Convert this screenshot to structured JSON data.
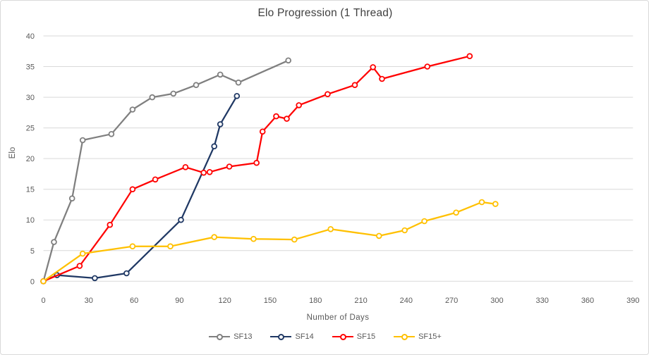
{
  "window": {
    "background": "#ffffff",
    "border_color": "#d9d9d9",
    "gridline_color": "#d9d9d9",
    "tick_text_color": "#595959",
    "title_text_color": "#404040"
  },
  "chart_data": {
    "type": "line",
    "title": "Elo Progression (1 Thread)",
    "xlabel": "Number of Days",
    "ylabel": "Elo",
    "xlim": [
      0,
      390
    ],
    "ylim": [
      0,
      40
    ],
    "xticks": [
      0,
      30,
      60,
      90,
      120,
      150,
      180,
      210,
      240,
      270,
      300,
      330,
      360,
      390
    ],
    "yticks": [
      0,
      5,
      10,
      15,
      20,
      25,
      30,
      35,
      40
    ],
    "grid": "horizontal",
    "legend_position": "bottom",
    "marker": "open-circle",
    "series": [
      {
        "name": "SF13",
        "color": "#7f7f7f",
        "points": [
          [
            0,
            0
          ],
          [
            7,
            6.4
          ],
          [
            19,
            13.5
          ],
          [
            26,
            23
          ],
          [
            45,
            24
          ],
          [
            59,
            28
          ],
          [
            72,
            30
          ],
          [
            86,
            30.6
          ],
          [
            101,
            32
          ],
          [
            117,
            33.7
          ],
          [
            129,
            32.4
          ],
          [
            162,
            36
          ]
        ]
      },
      {
        "name": "SF14",
        "color": "#1f3864",
        "points": [
          [
            0,
            0
          ],
          [
            9,
            1
          ],
          [
            34,
            0.5
          ],
          [
            55,
            1.3
          ],
          [
            91,
            10
          ],
          [
            113,
            22
          ],
          [
            117,
            25.6
          ],
          [
            128,
            30.2
          ]
        ]
      },
      {
        "name": "SF15",
        "color": "#ff0000",
        "points": [
          [
            0,
            0
          ],
          [
            24,
            2.5
          ],
          [
            44,
            9.2
          ],
          [
            59,
            15
          ],
          [
            74,
            16.6
          ],
          [
            94,
            18.6
          ],
          [
            106,
            17.7
          ],
          [
            110,
            17.8
          ],
          [
            123,
            18.7
          ],
          [
            141,
            19.3
          ],
          [
            145,
            24.4
          ],
          [
            154,
            26.9
          ],
          [
            161,
            26.5
          ],
          [
            169,
            28.7
          ],
          [
            188,
            30.5
          ],
          [
            206,
            32
          ],
          [
            218,
            34.9
          ],
          [
            224,
            33
          ],
          [
            254,
            35
          ],
          [
            282,
            36.7
          ]
        ]
      },
      {
        "name": "SF15+",
        "color": "#ffc000",
        "points": [
          [
            0,
            0
          ],
          [
            26,
            4.5
          ],
          [
            59,
            5.7
          ],
          [
            84,
            5.7
          ],
          [
            113,
            7.2
          ],
          [
            139,
            6.9
          ],
          [
            166,
            6.8
          ],
          [
            190,
            8.5
          ],
          [
            222,
            7.4
          ],
          [
            239,
            8.3
          ],
          [
            252,
            9.8
          ],
          [
            273,
            11.2
          ],
          [
            290,
            12.9
          ],
          [
            299,
            12.6
          ]
        ]
      }
    ]
  }
}
